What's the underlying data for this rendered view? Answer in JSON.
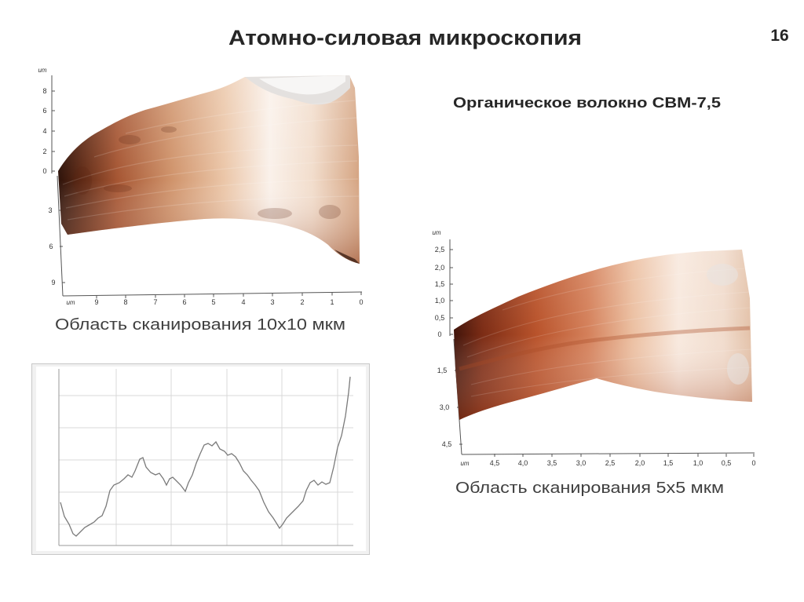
{
  "slide": {
    "title": "Атомно-силовая микроскопия",
    "page_number": "16",
    "subtitle": "Органическое волокно СВМ-7,5"
  },
  "afm_10x10": {
    "caption": "Область сканирования 10x10 мкм",
    "z_unit": "um",
    "z_ticks": [
      "8",
      "6",
      "4",
      "2",
      "0"
    ],
    "y_ticks": [
      "3",
      "6",
      "9"
    ],
    "x_unit": "um",
    "x_ticks": [
      "9",
      "8",
      "7",
      "6",
      "5",
      "4",
      "3",
      "2",
      "1",
      "0"
    ]
  },
  "afm_5x5": {
    "caption": "Область сканирования 5x5 мкм",
    "z_unit": "um",
    "z_ticks": [
      "2,5",
      "2,0",
      "1,5",
      "1,0",
      "0,5",
      "0"
    ],
    "y_ticks": [
      "1,5",
      "3,0",
      "4,5"
    ],
    "x_unit": "um",
    "x_ticks": [
      "4,5",
      "4,0",
      "3,5",
      "3,0",
      "2,5",
      "2,0",
      "1,5",
      "1,0",
      "0,5",
      "0"
    ]
  },
  "colors": {
    "surface_dark": "#3a170c",
    "surface_mid": "#c0653b",
    "surface_light": "#f7ece3",
    "profile_line": "#7a7a7a"
  }
}
